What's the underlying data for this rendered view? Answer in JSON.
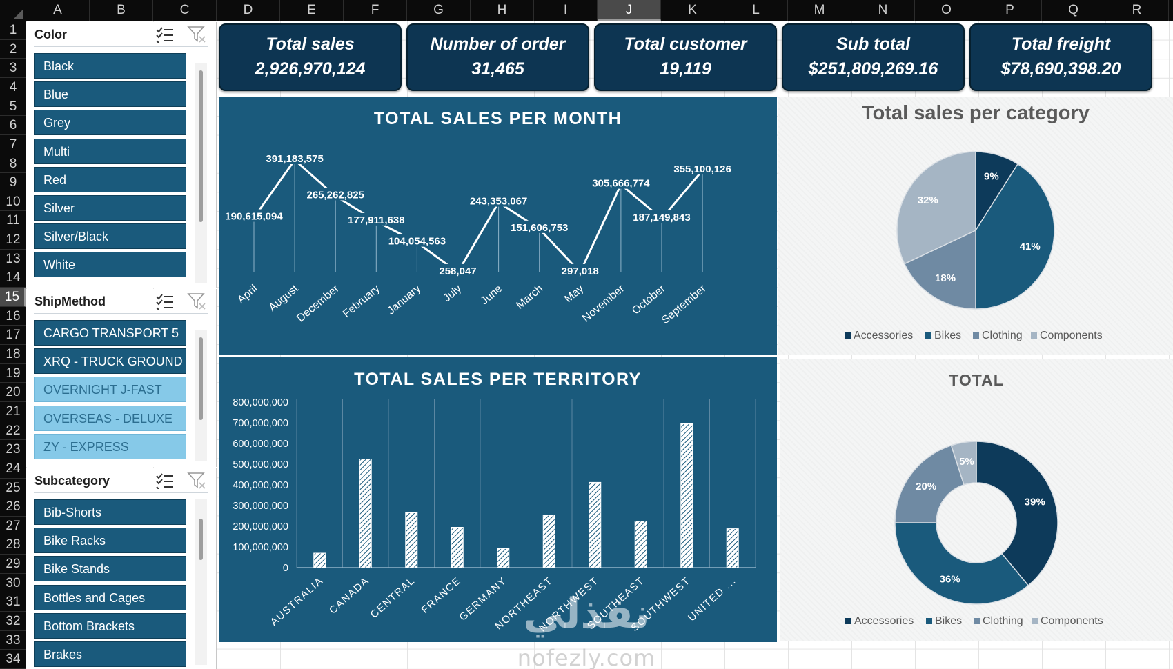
{
  "columns": [
    "A",
    "B",
    "C",
    "D",
    "E",
    "F",
    "G",
    "H",
    "I",
    "J",
    "K",
    "L",
    "M",
    "N",
    "O",
    "P",
    "Q",
    "R"
  ],
  "selected_column": "J",
  "rows": [
    "1",
    "2",
    "3",
    "4",
    "5",
    "6",
    "7",
    "8",
    "9",
    "10",
    "11",
    "12",
    "13",
    "14",
    "15",
    "16",
    "17",
    "18",
    "19",
    "20",
    "21",
    "22",
    "23",
    "24",
    "25",
    "26",
    "27",
    "28",
    "29",
    "30",
    "31",
    "32",
    "33",
    "34"
  ],
  "selected_row": "15",
  "slicers": {
    "color": {
      "title": "Color",
      "items": [
        {
          "label": "Black",
          "selected": true
        },
        {
          "label": "Blue",
          "selected": true
        },
        {
          "label": "Grey",
          "selected": true
        },
        {
          "label": "Multi",
          "selected": true
        },
        {
          "label": "Red",
          "selected": true
        },
        {
          "label": "Silver",
          "selected": true
        },
        {
          "label": "Silver/Black",
          "selected": true
        },
        {
          "label": "White",
          "selected": true
        }
      ]
    },
    "shipmethod": {
      "title": "ShipMethod",
      "items": [
        {
          "label": "CARGO TRANSPORT 5",
          "selected": true
        },
        {
          "label": "XRQ - TRUCK GROUND",
          "selected": true
        },
        {
          "label": "OVERNIGHT J-FAST",
          "selected": false
        },
        {
          "label": "OVERSEAS - DELUXE",
          "selected": false
        },
        {
          "label": "ZY - EXPRESS",
          "selected": false
        }
      ]
    },
    "subcategory": {
      "title": "Subcategory",
      "items": [
        {
          "label": "Bib-Shorts",
          "selected": true
        },
        {
          "label": "Bike Racks",
          "selected": true
        },
        {
          "label": "Bike Stands",
          "selected": true
        },
        {
          "label": "Bottles and Cages",
          "selected": true
        },
        {
          "label": "Bottom Brackets",
          "selected": true
        },
        {
          "label": "Brakes",
          "selected": true
        }
      ]
    }
  },
  "kpis": [
    {
      "label": "Total sales",
      "value": "2,926,970,124"
    },
    {
      "label": "Number of order",
      "value": "31,465"
    },
    {
      "label": "Total customer",
      "value": "19,119"
    },
    {
      "label": "Sub total",
      "value": "$251,809,269.16"
    },
    {
      "label": "Total freight",
      "value": "$78,690,398.20"
    }
  ],
  "colors": {
    "panel": "#1a5a7c",
    "kpi": "#0d3552",
    "accessories": "#0d3a5a",
    "bikes": "#1a5a7c",
    "clothing": "#6f8aa3",
    "components": "#a5b5c4"
  },
  "watermark": {
    "arabic": "نفذلي",
    "url": "nofezly.com"
  },
  "chart_data": [
    {
      "type": "line",
      "title": "TOTAL SALES PER MONTH",
      "categories": [
        "April",
        "August",
        "December",
        "February",
        "January",
        "July",
        "June",
        "March",
        "May",
        "November",
        "October",
        "September"
      ],
      "values": [
        190615094,
        391183575,
        265262825,
        177911638,
        104054563,
        258047,
        243353067,
        151606753,
        297018,
        305666774,
        187149843,
        355100126
      ],
      "data_labels": [
        "190,615,094",
        "391,183,575",
        "265,262,825",
        "177,911,638",
        "104,054,563",
        "258,047",
        "243,353,067",
        "151,606,753",
        "297,018",
        "305,666,774",
        "187,149,843",
        "355,100,126"
      ],
      "grid": false
    },
    {
      "type": "pie",
      "title": "Total sales per category",
      "categories": [
        "Accessories",
        "Bikes",
        "Clothing",
        "Components"
      ],
      "values": [
        9,
        41,
        18,
        32
      ],
      "data_labels": [
        "9%",
        "41%",
        "18%",
        "32%"
      ],
      "legend": "bottom"
    },
    {
      "type": "bar",
      "title": "TOTAL SALES PER TERRITORY",
      "categories": [
        "AUSTRALIA",
        "CANADA",
        "CENTRAL",
        "FRANCE",
        "GERMANY",
        "NORTHEAST",
        "NORTHWEST",
        "SOUTHEAST",
        "SOUTHWEST",
        "UNITED ..."
      ],
      "values": [
        70000000,
        525000000,
        265000000,
        195000000,
        92000000,
        253000000,
        412000000,
        225000000,
        695000000,
        188000000
      ],
      "ylim": [
        0,
        800000000
      ],
      "yticks": [
        "0",
        "100,000,000",
        "200,000,000",
        "300,000,000",
        "400,000,000",
        "500,000,000",
        "600,000,000",
        "700,000,000",
        "800,000,000"
      ],
      "grid": true
    },
    {
      "type": "pie",
      "subtype": "doughnut",
      "title": "TOTAL",
      "categories": [
        "Accessories",
        "Bikes",
        "Clothing",
        "Components"
      ],
      "values": [
        39,
        36,
        20,
        5
      ],
      "data_labels": [
        "39%",
        "36%",
        "20%",
        "5%"
      ],
      "legend": "bottom"
    }
  ]
}
